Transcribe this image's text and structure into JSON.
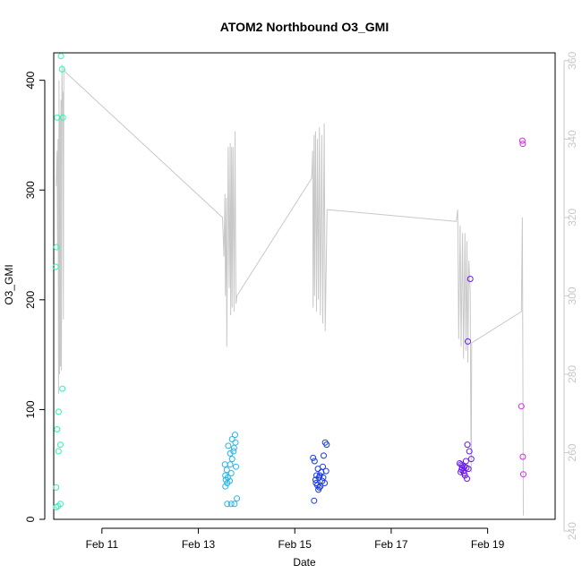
{
  "chart_data": {
    "type": "scatter",
    "title": "ATOM2 Northbound O3_GMI",
    "xlabel": "Date",
    "ylabel": "O3_GMI",
    "xlim": [
      10.0,
      20.4
    ],
    "ylim": [
      0,
      425
    ],
    "y2lim": [
      243,
      362
    ],
    "x_ticks": [
      {
        "value": 11,
        "label": "Feb 11"
      },
      {
        "value": 13,
        "label": "Feb 13"
      },
      {
        "value": 15,
        "label": "Feb 15"
      },
      {
        "value": 17,
        "label": "Feb 17"
      },
      {
        "value": 19,
        "label": "Feb 19"
      }
    ],
    "y_ticks": [
      0,
      100,
      200,
      300,
      400
    ],
    "y2_ticks": [
      240,
      260,
      280,
      300,
      320,
      340,
      360
    ],
    "series": [
      {
        "color": "#2ef5b4",
        "points": [
          [
            10.15,
            422
          ],
          [
            10.17,
            410
          ],
          [
            10.07,
            366
          ],
          [
            10.19,
            366
          ],
          [
            10.06,
            248
          ],
          [
            10.04,
            230
          ],
          [
            10.18,
            119
          ],
          [
            10.1,
            98
          ],
          [
            10.07,
            82
          ],
          [
            10.14,
            68
          ],
          [
            10.1,
            62
          ],
          [
            10.05,
            29
          ],
          [
            10.14,
            14
          ],
          [
            10.09,
            12
          ],
          [
            10.05,
            11
          ]
        ]
      },
      {
        "color": "#22b6ea",
        "points": [
          [
            13.62,
            67
          ],
          [
            13.66,
            60
          ],
          [
            13.7,
            55
          ],
          [
            13.55,
            50
          ],
          [
            13.78,
            48
          ],
          [
            13.59,
            45
          ],
          [
            13.68,
            42
          ],
          [
            13.56,
            40
          ],
          [
            13.61,
            38
          ],
          [
            13.57,
            36
          ],
          [
            13.65,
            35
          ],
          [
            13.6,
            33
          ],
          [
            13.56,
            30
          ],
          [
            13.74,
            65
          ],
          [
            13.77,
            70
          ],
          [
            13.7,
            73
          ],
          [
            13.76,
            77
          ],
          [
            13.73,
            62
          ],
          [
            13.66,
            50
          ],
          [
            13.6,
            14
          ],
          [
            13.68,
            14
          ],
          [
            13.75,
            14
          ],
          [
            13.8,
            19
          ]
        ]
      },
      {
        "color": "#1b3bde",
        "points": [
          [
            15.38,
            56
          ],
          [
            15.41,
            53
          ],
          [
            15.48,
            46
          ],
          [
            15.55,
            43
          ],
          [
            15.63,
            70
          ],
          [
            15.66,
            68
          ],
          [
            15.6,
            58
          ],
          [
            15.45,
            40
          ],
          [
            15.5,
            38
          ],
          [
            15.43,
            36
          ],
          [
            15.57,
            35
          ],
          [
            15.62,
            33
          ],
          [
            15.47,
            31
          ],
          [
            15.53,
            30
          ],
          [
            15.49,
            27
          ],
          [
            15.4,
            17
          ],
          [
            15.58,
            48
          ],
          [
            15.65,
            44
          ],
          [
            15.52,
            40
          ],
          [
            15.44,
            33
          ],
          [
            15.59,
            38
          ],
          [
            15.51,
            29
          ]
        ]
      },
      {
        "color": "#6a1cf0",
        "points": [
          [
            18.64,
            219
          ],
          [
            18.59,
            162
          ],
          [
            18.58,
            68
          ],
          [
            18.62,
            62
          ],
          [
            18.66,
            55
          ],
          [
            18.55,
            53
          ],
          [
            18.42,
            51
          ],
          [
            18.45,
            50
          ],
          [
            18.48,
            49
          ],
          [
            18.52,
            48
          ],
          [
            18.56,
            47
          ],
          [
            18.6,
            46
          ],
          [
            18.46,
            45
          ],
          [
            18.5,
            44
          ],
          [
            18.44,
            43
          ],
          [
            18.53,
            40
          ],
          [
            18.57,
            37
          ],
          [
            18.47,
            47
          ],
          [
            18.51,
            42
          ]
        ]
      },
      {
        "color": "#d22ce2",
        "points": [
          [
            19.72,
            345
          ],
          [
            19.73,
            342
          ],
          [
            19.7,
            103
          ],
          [
            19.73,
            57
          ],
          [
            19.74,
            41
          ]
        ]
      }
    ],
    "right_axis_line": {
      "color": "#c8c8c8",
      "points": [
        [
          10.05,
          328
        ],
        [
          10.07,
          337
        ],
        [
          10.08,
          312
        ],
        [
          10.09,
          340
        ],
        [
          10.1,
          275
        ],
        [
          10.11,
          355
        ],
        [
          10.12,
          280
        ],
        [
          10.13,
          346
        ],
        [
          10.14,
          282
        ],
        [
          10.15,
          350
        ],
        [
          10.16,
          281
        ],
        [
          10.17,
          359
        ],
        [
          10.18,
          348
        ],
        [
          10.19,
          352
        ],
        [
          10.2,
          294
        ],
        [
          10.21,
          358
        ],
        [
          10.25,
          357
        ],
        [
          13.5,
          320
        ],
        [
          13.53,
          310
        ],
        [
          13.55,
          326
        ],
        [
          13.56,
          300
        ],
        [
          13.58,
          325
        ],
        [
          13.59,
          287
        ],
        [
          13.62,
          338
        ],
        [
          13.64,
          302
        ],
        [
          13.66,
          339
        ],
        [
          13.67,
          295
        ],
        [
          13.69,
          338
        ],
        [
          13.7,
          297
        ],
        [
          13.72,
          338
        ],
        [
          13.74,
          296
        ],
        [
          13.76,
          342
        ],
        [
          13.78,
          298
        ],
        [
          13.8,
          300
        ],
        [
          15.35,
          330
        ],
        [
          15.37,
          337
        ],
        [
          15.38,
          297
        ],
        [
          15.4,
          341
        ],
        [
          15.41,
          300
        ],
        [
          15.43,
          342
        ],
        [
          15.45,
          296
        ],
        [
          15.47,
          340
        ],
        [
          15.49,
          299
        ],
        [
          15.51,
          343
        ],
        [
          15.53,
          295
        ],
        [
          15.56,
          341
        ],
        [
          15.58,
          293
        ],
        [
          15.61,
          344
        ],
        [
          15.63,
          291
        ],
        [
          15.67,
          322
        ],
        [
          18.35,
          319
        ],
        [
          18.38,
          322
        ],
        [
          18.4,
          289
        ],
        [
          18.43,
          318
        ],
        [
          18.45,
          287
        ],
        [
          18.48,
          316
        ],
        [
          18.5,
          284
        ],
        [
          18.53,
          316
        ],
        [
          18.55,
          286
        ],
        [
          18.57,
          314
        ],
        [
          18.59,
          283
        ],
        [
          18.61,
          309
        ],
        [
          18.64,
          301
        ],
        [
          18.65,
          268
        ],
        [
          18.66,
          255
        ],
        [
          18.67,
          288
        ],
        [
          19.7,
          296
        ],
        [
          19.72,
          320
        ],
        [
          19.74,
          244
        ]
      ]
    }
  }
}
